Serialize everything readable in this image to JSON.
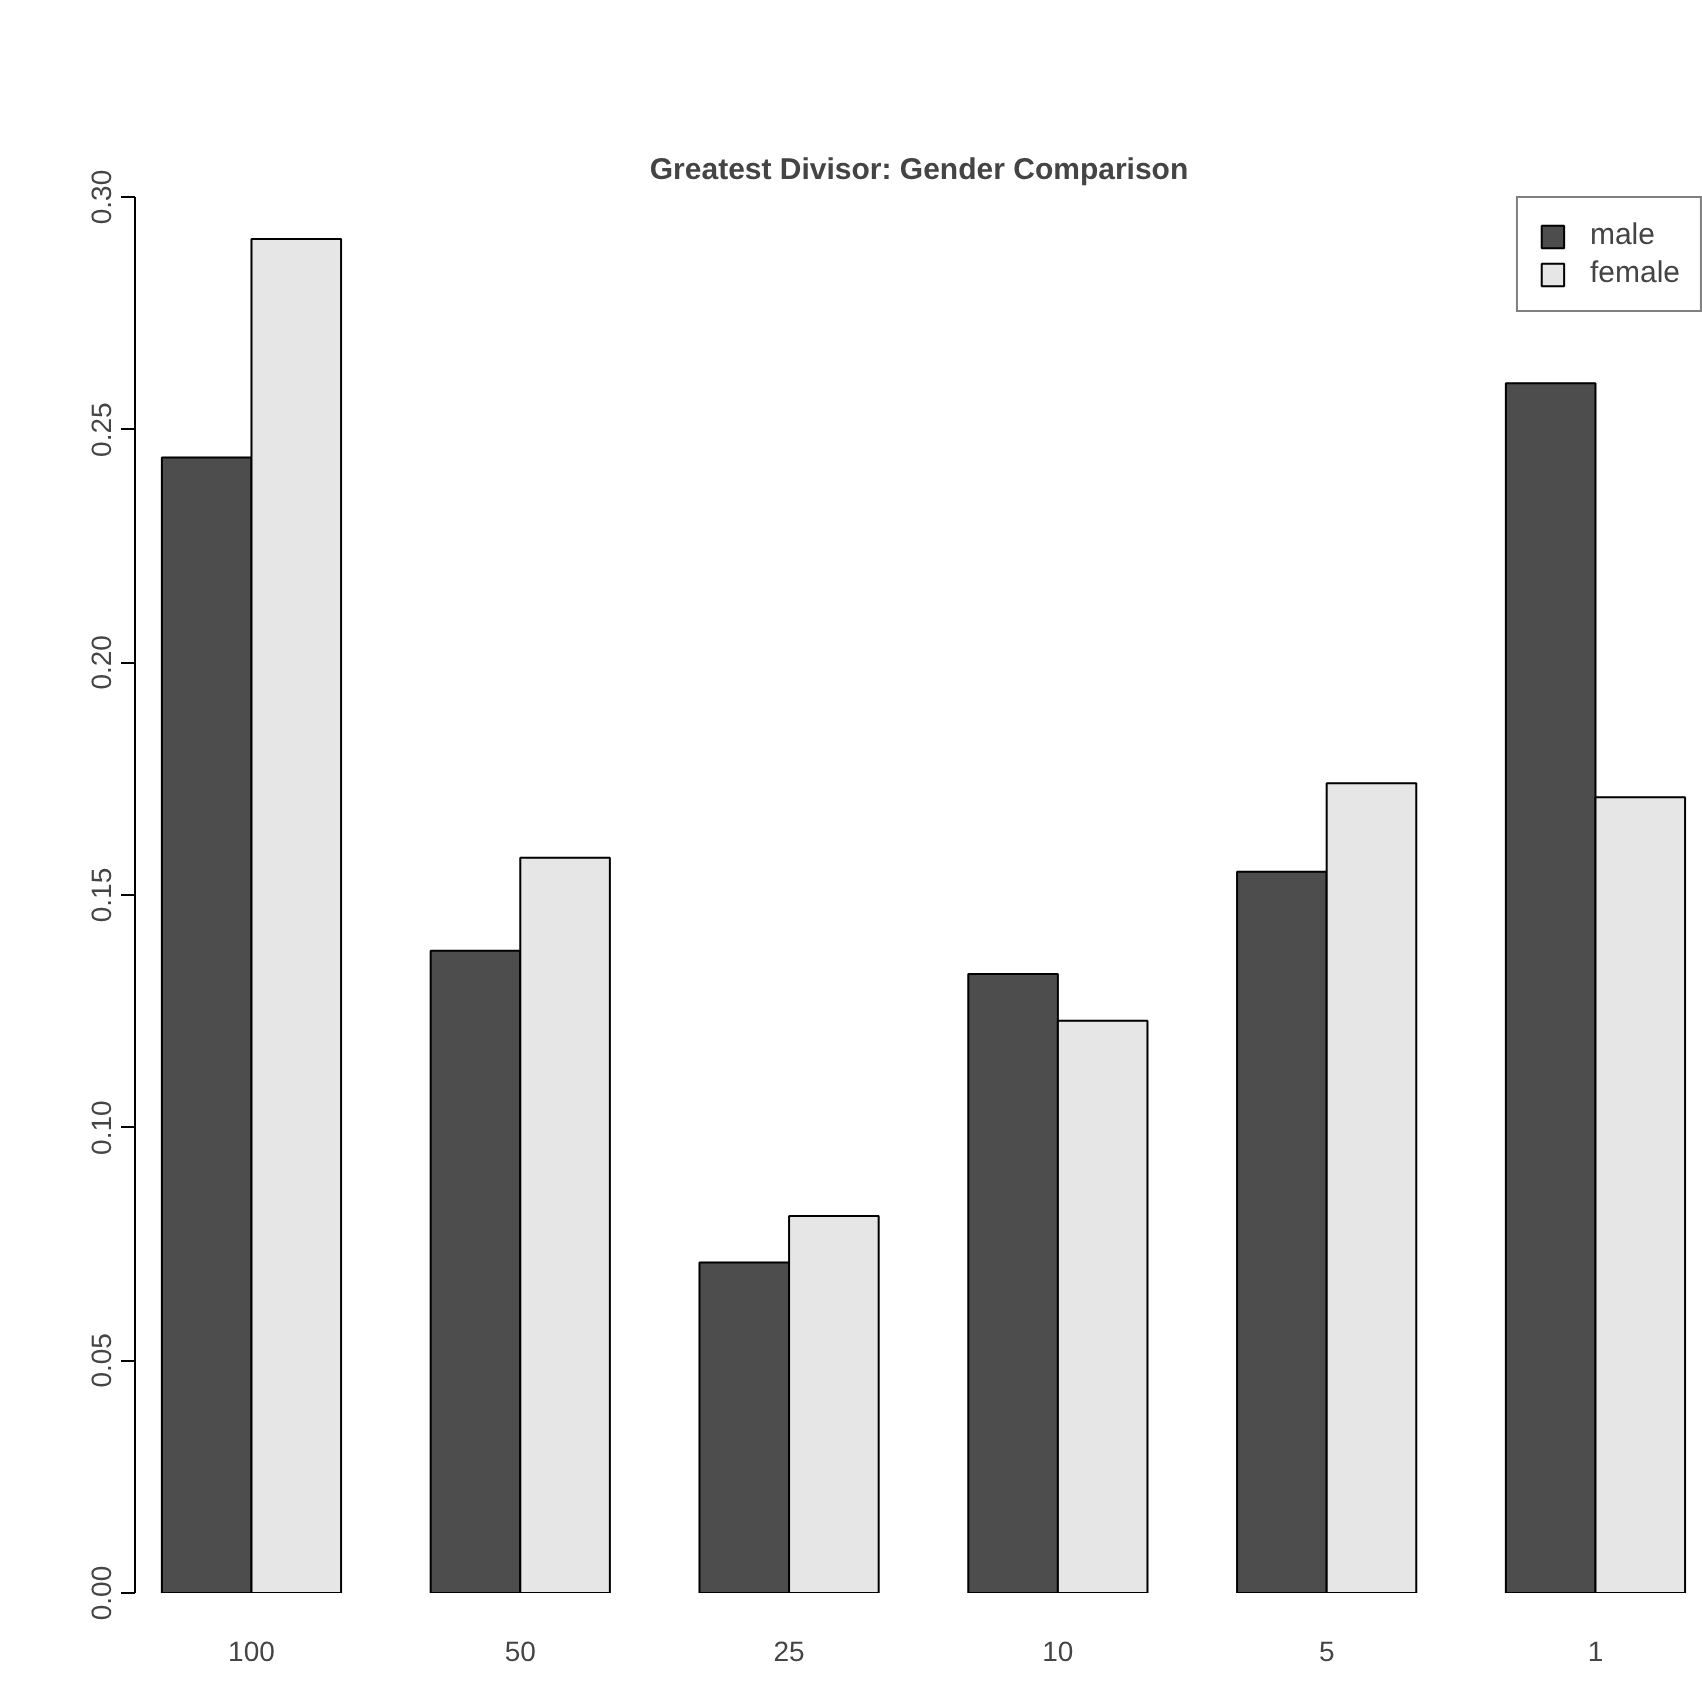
{
  "chart_data": {
    "type": "bar",
    "title": "Greatest Divisor: Gender Comparison",
    "categories": [
      "100",
      "50",
      "25",
      "10",
      "5",
      "1"
    ],
    "series": [
      {
        "name": "male",
        "color": "#4d4d4d",
        "values": [
          0.244,
          0.138,
          0.071,
          0.133,
          0.155,
          0.26
        ]
      },
      {
        "name": "female",
        "color": "#e6e6e6",
        "values": [
          0.291,
          0.158,
          0.081,
          0.123,
          0.174,
          0.171
        ]
      }
    ],
    "ylim": [
      0,
      0.3
    ],
    "yticks": [
      {
        "value": 0,
        "label": "0.00"
      },
      {
        "value": 0.05,
        "label": "0.05"
      },
      {
        "value": 0.1,
        "label": "0.10"
      },
      {
        "value": 0.15,
        "label": "0.15"
      },
      {
        "value": 0.2,
        "label": "0.20"
      },
      {
        "value": 0.25,
        "label": "0.25"
      },
      {
        "value": 0.3,
        "label": "0.30"
      }
    ],
    "grid": false,
    "legend": "top right"
  }
}
